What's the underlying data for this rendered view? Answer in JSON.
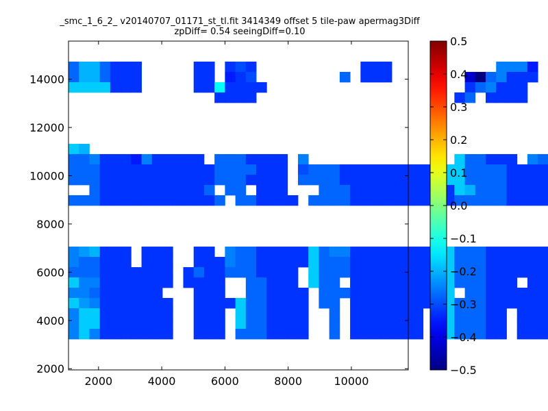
{
  "chart_data": {
    "type": "heatmap",
    "title_line1": "_smc_1_6_2_ v20140707_01171_st_tl.fit 3414349 offset 5 tile-paw apermag3Diff",
    "title_line2": "zpDiff= 0.54 seeingDiff=0.10",
    "xlabel": "",
    "ylabel": "",
    "xlim": [
      1050,
      11800
    ],
    "ylim": [
      1950,
      15580
    ],
    "x_ticks": [
      "2000",
      "4000",
      "6000",
      "8000",
      "10000"
    ],
    "y_ticks": [
      "2000",
      "4000",
      "6000",
      "8000",
      "10000",
      "12000",
      "14000"
    ],
    "colorbar": {
      "range": [
        -0.5,
        0.5
      ],
      "ticks": [
        "0.5",
        "0.4",
        "0.3",
        "0.2",
        "0.1",
        "0.0",
        "−0.1",
        "−0.2",
        "−0.3",
        "−0.4",
        "−0.5"
      ],
      "colormap": "jet"
    },
    "cells": {
      "x_start": 1050,
      "x_step": 330,
      "y_start": 1950,
      "y_step": 426,
      "rows": [
        "JMMJHHH.....HH.HIH..........HHH..........KKKG.NNOLL",
        "JMMJHHH.....HH.GHI........J.HHH.......DAJKHHH.NNOLL",
        "NNNNHHH.....HHPHHHH...................HJKHHH...OLNM",
        "..............HHHH...................HJ.HHHH....OOM",
        "....................................................",
        "....................................................",
        "....................................................",
        "....................................................",
        "NM...............................................KNM",
        "JJKHHHGKHHHHH.JJJHHHH.K..............NJJHHH.KJK.NJJ",
        "JJJHHHHHHHHHHHJJJJHHH.IJJJHHHHHHHHHHNNJJJJHHHHHH.JJJ",
        "JJJHHHHHHHHHHHJJJHHHH.JJJJHHHHHHHHHHNNJJJJHHHHHH.JJJ",
        "..JHHHHHHHHHHJ.JJ.HHH...JJJHHHHHHHHHHNMJJJHHHHHH..JJ",
        "JJJHHHHHHHHHHHJ.JJHHHH.JJJJHHHHHHHHHHJJJJJHHHHHH.JJJ",
        "....................................................",
        "....................................................",
        "....................................................",
        "....................................................",
        "KLMHHH.HHH..HH.KJJHHHHHNJKKHHHHHHHHNNJJJHHHHHH.NJJH",
        "KJJHHH.HHH..HHHKJJHHHHHNJJJHHHHHHHHNNJJJHHHHHH.NJJH",
        "JJJHHHHHHH.HJHHJJJHHHH.NJJJHHHHHHHHNNJJJHHHHHH.NJJH",
        "NKKHHHHHHH.HHHH..JJHHH.NJJ.HHHHHHHHNNJJJHHH.HHHKJJH",
        "KKJHHHHHH...HHH..JJHHHH.JJJHHHHHHHHNN.JJHHHHHH.KJJH",
        "NLKHHHHHHH..HHHHNJJHHHH.JJ.HHHHHHHHNNJJJHHHHHH.NJJH",
        "KNNHHHHHHH..HHH.NJJHHHH..J.HHHHHHH.NNJJJHH.HHHHNJJH",
        "KNNHHHHHHH..HHH.NJJHHHH..J.HHHHHHH.NNJJJHH.HHHHNJJH",
        "KNKHHHHHHH..HHH.JJJHHHH..J.HHHHHHH.NNJJJHH.HHHHNJJH",
        "....................................................",
        "....................................................",
        "...................................................."
      ]
    }
  }
}
